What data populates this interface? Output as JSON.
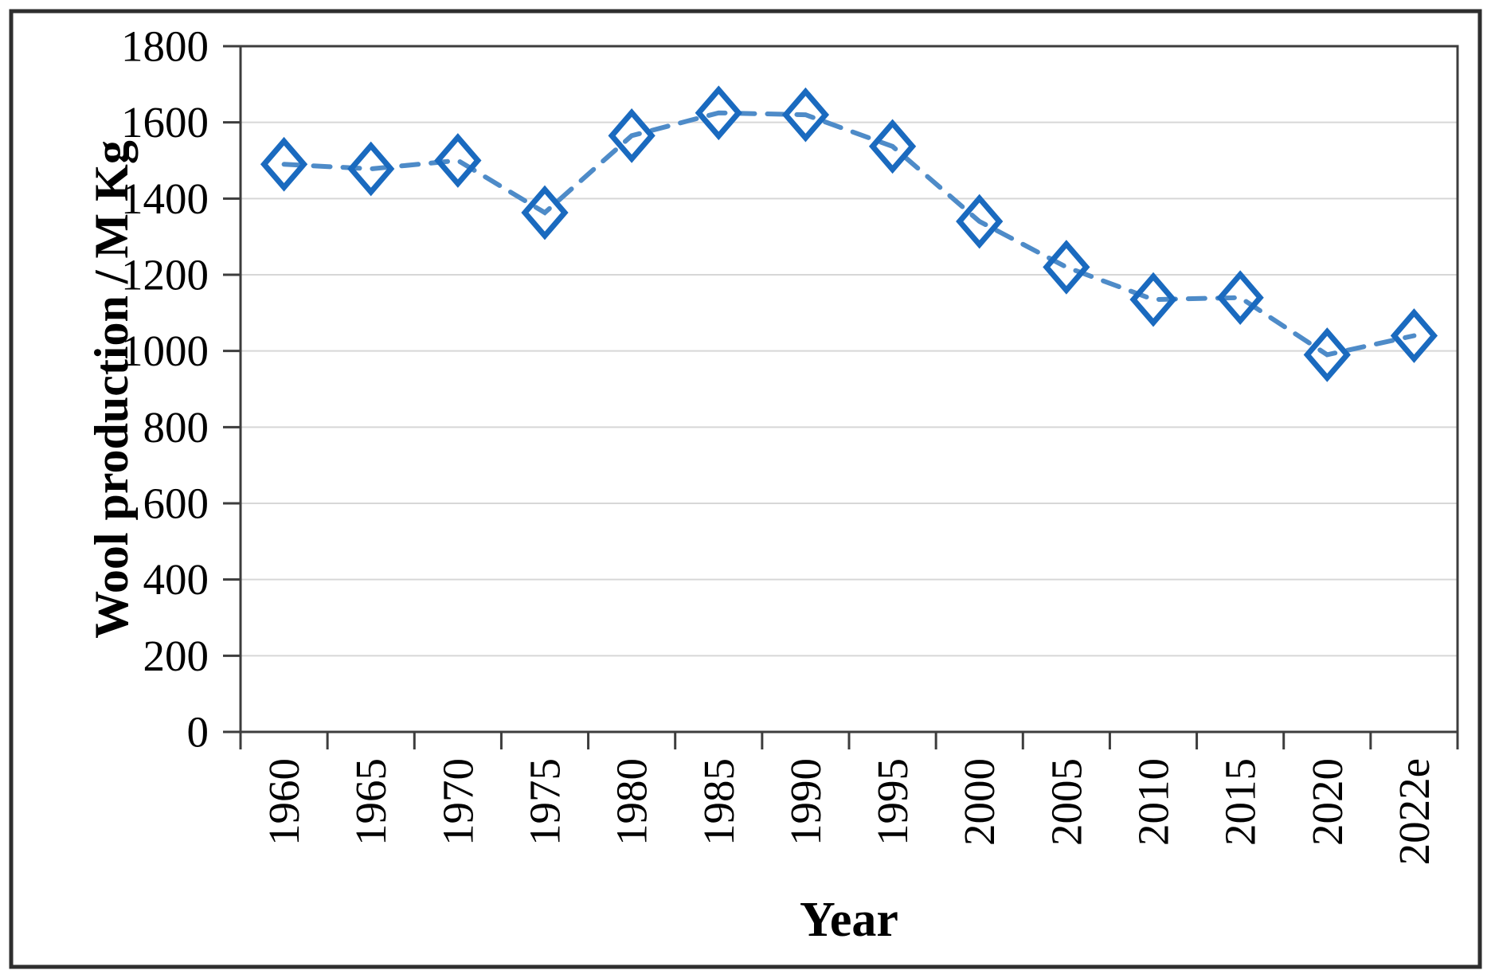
{
  "chart_data": {
    "type": "line",
    "title": "",
    "xlabel": "Year",
    "ylabel": "Wool production / M Kg",
    "categories": [
      "1960",
      "1965",
      "1970",
      "1975",
      "1980",
      "1985",
      "1990",
      "1995",
      "2000",
      "2005",
      "2010",
      "2015",
      "2020",
      "2022e"
    ],
    "series": [
      {
        "name": "Wool production",
        "values": [
          1490,
          1478,
          1500,
          1363,
          1565,
          1625,
          1620,
          1537,
          1340,
          1220,
          1135,
          1140,
          990,
          1040
        ]
      }
    ],
    "ylim": [
      0,
      1800
    ],
    "ytick_step": 200,
    "ytick_labels": [
      "0",
      "200",
      "400",
      "600",
      "800",
      "1000",
      "1200",
      "1400",
      "1600",
      "1800"
    ],
    "grid": "horizontal-only",
    "legend": "none",
    "line_style": "dashed",
    "marker": "open-diamond",
    "x_label_rotation": -90,
    "colors": {
      "line": "#4E8BC8",
      "marker": "#1A6ABF",
      "marker_fill": "#FFFFFF",
      "gridline": "#D7D7D7",
      "axis": "#3D3D3D",
      "frame": "#2E2E2E",
      "background": "#FFFFFF",
      "text": "#000000"
    }
  }
}
